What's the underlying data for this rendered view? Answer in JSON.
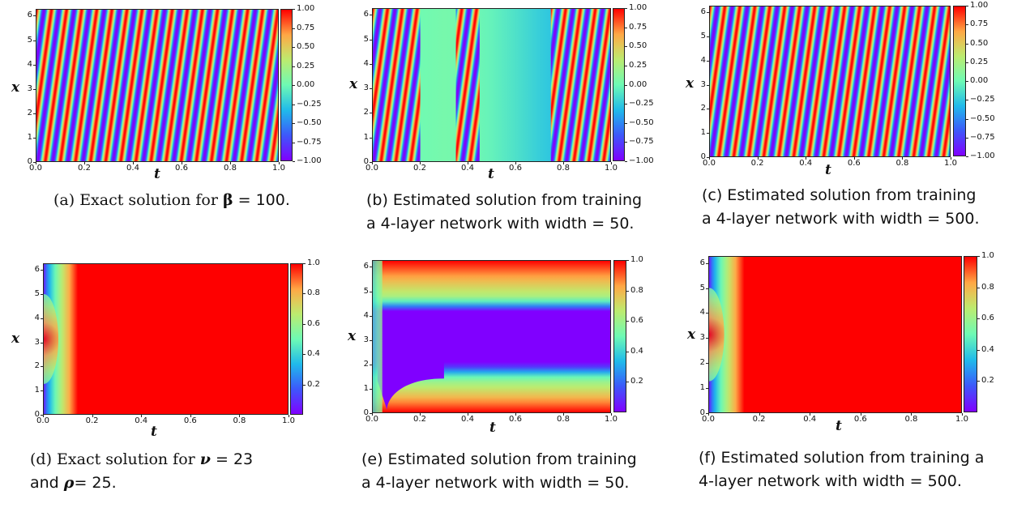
{
  "panels": [
    {
      "id": "a",
      "type": "heatmap",
      "pattern": "stripes",
      "xlabel": "t",
      "ylabel": "x",
      "xticks": [
        "0.0",
        "0.2",
        "0.4",
        "0.6",
        "0.8",
        "1.0"
      ],
      "yticks": [
        "0",
        "1",
        "2",
        "3",
        "4",
        "5",
        "6"
      ],
      "xlim": [
        0,
        1
      ],
      "ylim": [
        0,
        6.28
      ],
      "colorbar_ticks": [
        "1.00",
        "0.75",
        "0.50",
        "0.25",
        "0.00",
        "−0.25",
        "−0.50",
        "−0.75",
        "−1.00"
      ],
      "colorbar_range": [
        -1,
        1
      ],
      "cycles_over_t": 16,
      "caption_parts": [
        "(a) Exact solution for ",
        "β",
        " = 100."
      ]
    },
    {
      "id": "b",
      "type": "heatmap",
      "pattern": "partial_stripes",
      "xlabel": "t",
      "ylabel": "x",
      "xticks": [
        "0.0",
        "0.2",
        "0.4",
        "0.6",
        "0.8",
        "1.0"
      ],
      "yticks": [
        "0",
        "1",
        "2",
        "3",
        "4",
        "5",
        "6"
      ],
      "xlim": [
        0,
        1
      ],
      "ylim": [
        0,
        6.28
      ],
      "colorbar_ticks": [
        "1.00",
        "0.75",
        "0.50",
        "0.25",
        "0.00",
        "−0.25",
        "−0.50",
        "−0.75",
        "−1.00"
      ],
      "colorbar_range": [
        -1,
        1
      ],
      "stripe_regions_t": [
        [
          0.0,
          0.2
        ],
        [
          0.35,
          0.45
        ],
        [
          0.75,
          1.0
        ]
      ],
      "caption_line1": "(b) Estimated solution from training",
      "caption_line2": "a 4-layer network with width = 50."
    },
    {
      "id": "c",
      "type": "heatmap",
      "pattern": "stripes",
      "xlabel": "t",
      "ylabel": "x",
      "xticks": [
        "0.0",
        "0.2",
        "0.4",
        "0.6",
        "0.8",
        "1.0"
      ],
      "yticks": [
        "0",
        "1",
        "2",
        "3",
        "4",
        "5",
        "6"
      ],
      "xlim": [
        0,
        1
      ],
      "ylim": [
        0,
        6.28
      ],
      "colorbar_ticks": [
        "1.00",
        "0.75",
        "0.50",
        "0.25",
        "0.00",
        "−0.25",
        "−0.50",
        "−0.75",
        "−1.00"
      ],
      "colorbar_range": [
        -1,
        1
      ],
      "cycles_over_t": 16,
      "caption_line1": "(c) Estimated solution from training",
      "caption_line2": "a 4-layer network with width = 500."
    },
    {
      "id": "d",
      "type": "heatmap",
      "pattern": "reaction_front",
      "xlabel": "t",
      "ylabel": "x",
      "xticks": [
        "0.0",
        "0.2",
        "0.4",
        "0.6",
        "0.8",
        "1.0"
      ],
      "yticks": [
        "0",
        "1",
        "2",
        "3",
        "4",
        "5",
        "6"
      ],
      "xlim": [
        0,
        1
      ],
      "ylim": [
        0,
        6.28
      ],
      "colorbar_ticks": [
        "1.0",
        "0.8",
        "0.6",
        "0.4",
        "0.2"
      ],
      "colorbar_range": [
        0,
        1
      ],
      "caption_line1_parts": [
        "(d) Exact solution for ",
        "ν",
        " = 23"
      ],
      "caption_line2_parts": [
        "and ",
        "ρ",
        "= 25."
      ]
    },
    {
      "id": "e",
      "type": "heatmap",
      "pattern": "failed_band",
      "xlabel": "t",
      "ylabel": "x",
      "xticks": [
        "0.0",
        "0.2",
        "0.4",
        "0.6",
        "0.8",
        "1.0"
      ],
      "yticks": [
        "0",
        "1",
        "2",
        "3",
        "4",
        "5",
        "6"
      ],
      "xlim": [
        0,
        1
      ],
      "ylim": [
        0,
        6.28
      ],
      "colorbar_ticks": [
        "1.0",
        "0.8",
        "0.6",
        "0.4",
        "0.2"
      ],
      "colorbar_range": [
        0,
        1
      ],
      "caption_line1": "(e) Estimated solution from training",
      "caption_line2": "a 4-layer network with width = 50."
    },
    {
      "id": "f",
      "type": "heatmap",
      "pattern": "reaction_front",
      "xlabel": "t",
      "ylabel": "x",
      "xticks": [
        "0.0",
        "0.2",
        "0.4",
        "0.6",
        "0.8",
        "1.0"
      ],
      "yticks": [
        "0",
        "1",
        "2",
        "3",
        "4",
        "5",
        "6"
      ],
      "xlim": [
        0,
        1
      ],
      "ylim": [
        0,
        6.28
      ],
      "colorbar_ticks": [
        "1.0",
        "0.8",
        "0.6",
        "0.4",
        "0.2"
      ],
      "colorbar_range": [
        0,
        1
      ],
      "caption_line1": "(f) Estimated solution from training a",
      "caption_line2": "4-layer network with width = 500."
    }
  ]
}
